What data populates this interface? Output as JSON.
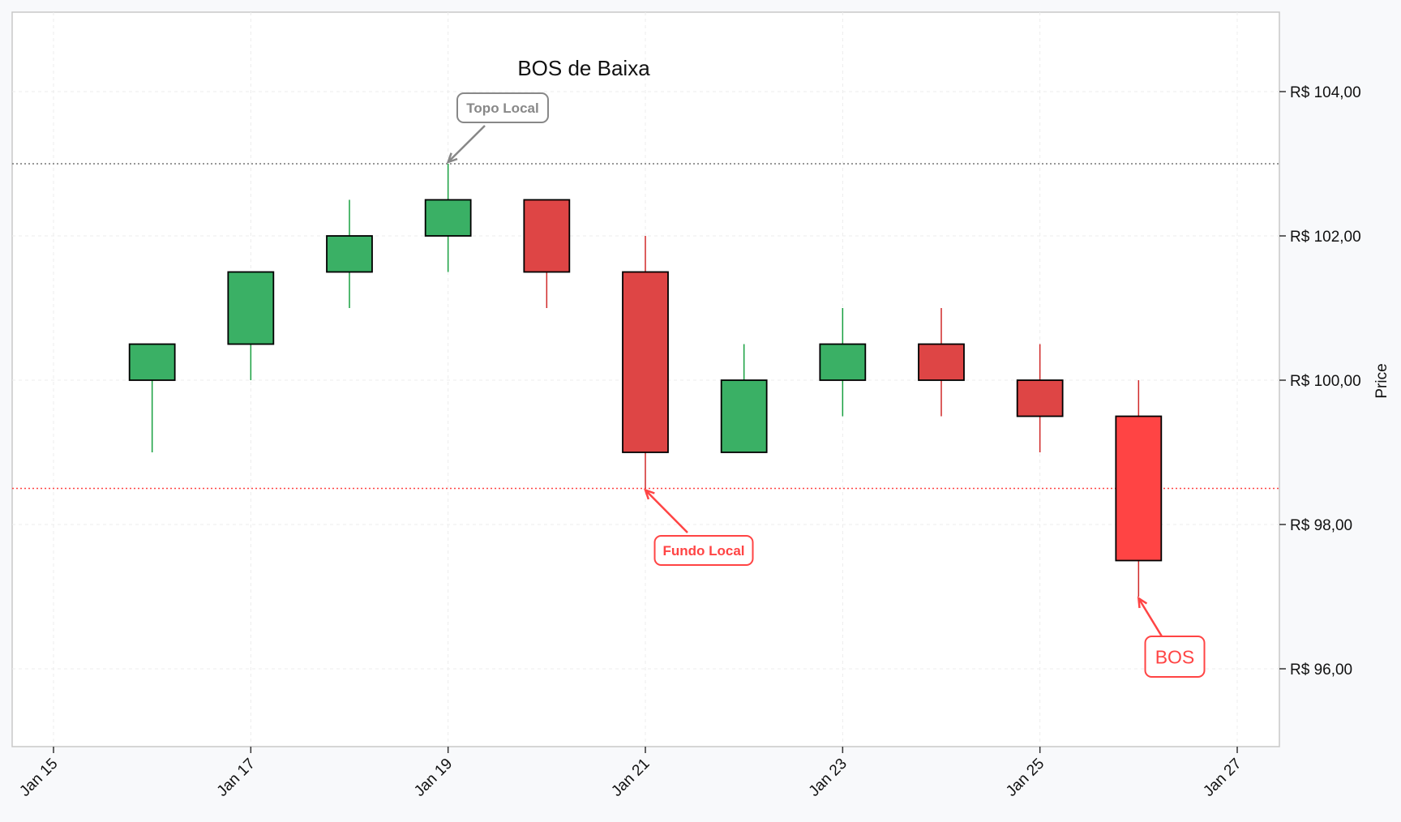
{
  "chart_data": {
    "type": "candlestick",
    "title": "BOS de Baixa",
    "xlabel": "",
    "ylabel": "Price",
    "ylim": [
      95,
      105.2
    ],
    "xlim": [
      "2024-01-15",
      "2024-01-27"
    ],
    "grid": true,
    "x_ticks": [
      {
        "date": "2024-01-15",
        "label": "Jan 15"
      },
      {
        "date": "2024-01-17",
        "label": "Jan 17"
      },
      {
        "date": "2024-01-19",
        "label": "Jan 19"
      },
      {
        "date": "2024-01-21",
        "label": "Jan 21"
      },
      {
        "date": "2024-01-23",
        "label": "Jan 23"
      },
      {
        "date": "2024-01-25",
        "label": "Jan 25"
      },
      {
        "date": "2024-01-27",
        "label": "Jan 27"
      }
    ],
    "y_ticks": [
      {
        "value": 96,
        "label": "R$ 96,00"
      },
      {
        "value": 98,
        "label": "R$ 98,00"
      },
      {
        "value": 100,
        "label": "R$ 100,00"
      },
      {
        "value": 102,
        "label": "R$ 102,00"
      },
      {
        "value": 104,
        "label": "R$ 104,00"
      }
    ],
    "candles": [
      {
        "date": "2024-01-16",
        "open": 100.0,
        "high": 100.5,
        "low": 99.0,
        "close": 100.5
      },
      {
        "date": "2024-01-17",
        "open": 100.5,
        "high": 101.5,
        "low": 100.0,
        "close": 101.5
      },
      {
        "date": "2024-01-18",
        "open": 101.5,
        "high": 102.5,
        "low": 101.0,
        "close": 102.0
      },
      {
        "date": "2024-01-19",
        "open": 102.0,
        "high": 103.0,
        "low": 101.5,
        "close": 102.5
      },
      {
        "date": "2024-01-20",
        "open": 102.5,
        "high": 102.5,
        "low": 101.0,
        "close": 101.5
      },
      {
        "date": "2024-01-21",
        "open": 101.5,
        "high": 102.0,
        "low": 98.5,
        "close": 99.0
      },
      {
        "date": "2024-01-22",
        "open": 99.0,
        "high": 100.5,
        "low": 99.0,
        "close": 100.0
      },
      {
        "date": "2024-01-23",
        "open": 100.0,
        "high": 101.0,
        "low": 99.5,
        "close": 100.5
      },
      {
        "date": "2024-01-24",
        "open": 100.5,
        "high": 101.0,
        "low": 99.5,
        "close": 100.0
      },
      {
        "date": "2024-01-25",
        "open": 100.0,
        "high": 100.5,
        "low": 99.0,
        "close": 99.5
      },
      {
        "date": "2024-01-26",
        "open": 99.5,
        "high": 100.0,
        "low": 97.0,
        "close": 97.5,
        "highlight": true
      }
    ],
    "reference_lines": [
      {
        "value": 103.0,
        "color": "#777777"
      },
      {
        "value": 98.5,
        "color": "#ff4444"
      }
    ],
    "annotations": [
      {
        "text": "Topo Local",
        "date": "2024-01-19",
        "value": 103.0,
        "color": "#888888"
      },
      {
        "text": "Fundo Local",
        "date": "2024-01-21",
        "value": 98.5,
        "color": "#ff4444"
      },
      {
        "text": "BOS",
        "date": "2024-01-26",
        "value": 97.0,
        "color": "#ff4444"
      }
    ],
    "colors": {
      "up": "#3ab065",
      "down": "#de4545",
      "highlight": "#ff4444",
      "wick_up": "#18a040",
      "wick_down": "#d02828",
      "body_border": "#000000"
    }
  }
}
